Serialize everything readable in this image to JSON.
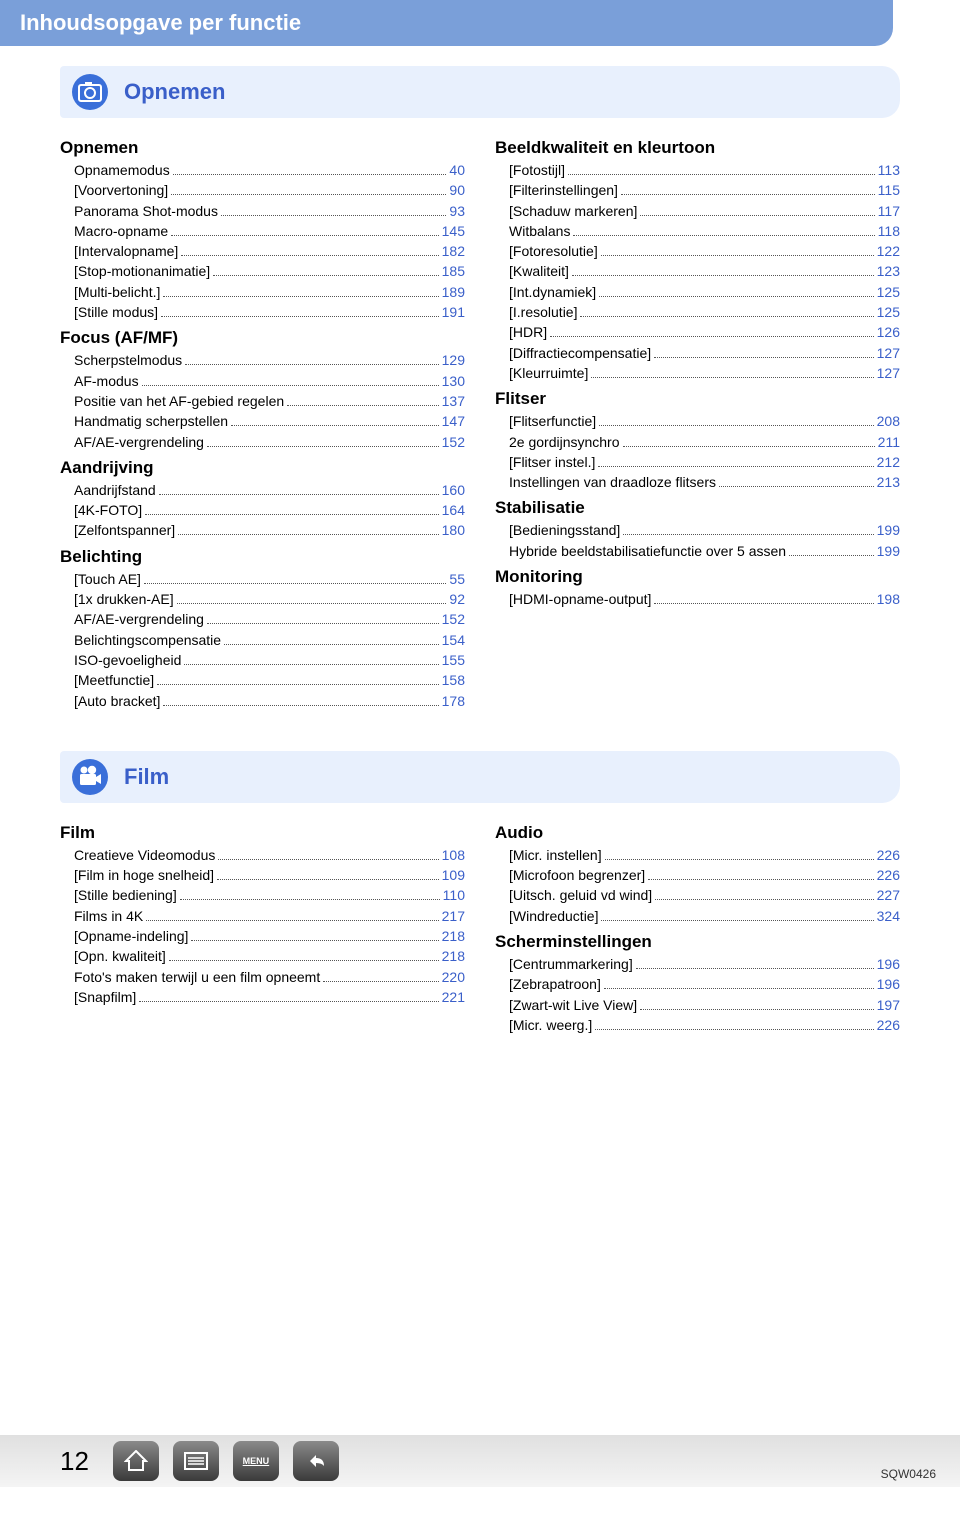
{
  "title": "Inhoudsopgave per functie",
  "page_number": "12",
  "footer_code": "SQW0426",
  "menu_label": "MENU",
  "colors": {
    "accent": "#3a5fc9",
    "header_bg": "#7a9fd9",
    "section_bg": "#e8f0fd"
  },
  "sections": [
    {
      "heading": "Opnemen",
      "icon": "camera-icon",
      "left": [
        {
          "sub": "Opnemen"
        },
        {
          "label": "Opnamemodus",
          "page": "40"
        },
        {
          "label": "[Voorvertoning]",
          "page": "90"
        },
        {
          "label": "Panorama Shot-modus",
          "page": "93"
        },
        {
          "label": "Macro-opname",
          "page": "145"
        },
        {
          "label": "[Intervalopname]",
          "page": "182"
        },
        {
          "label": "[Stop-motionanimatie]",
          "page": "185"
        },
        {
          "label": "[Multi-belicht.]",
          "page": "189"
        },
        {
          "label": "[Stille modus]",
          "page": "191"
        },
        {
          "sub": "Focus (AF/MF)"
        },
        {
          "label": "Scherpstelmodus",
          "page": "129"
        },
        {
          "label": "AF-modus",
          "page": "130"
        },
        {
          "label": "Positie van het AF-gebied regelen",
          "page": "137"
        },
        {
          "label": "Handmatig scherpstellen",
          "page": "147"
        },
        {
          "label": "AF/AE-vergrendeling",
          "page": "152"
        },
        {
          "sub": "Aandrijving"
        },
        {
          "label": "Aandrijfstand",
          "page": "160"
        },
        {
          "label": "[4K-FOTO]",
          "page": "164"
        },
        {
          "label": "[Zelfontspanner]",
          "page": "180"
        },
        {
          "sub": "Belichting"
        },
        {
          "label": "[Touch AE]",
          "page": "55"
        },
        {
          "label": "[1x drukken-AE]",
          "page": "92"
        },
        {
          "label": "AF/AE-vergrendeling",
          "page": "152"
        },
        {
          "label": "Belichtingscompensatie",
          "page": "154"
        },
        {
          "label": "ISO-gevoeligheid",
          "page": "155"
        },
        {
          "label": "[Meetfunctie]",
          "page": "158"
        },
        {
          "label": "[Auto bracket]",
          "page": "178"
        }
      ],
      "right": [
        {
          "sub": "Beeldkwaliteit en kleurtoon"
        },
        {
          "label": "[Fotostijl]",
          "page": "113"
        },
        {
          "label": "[Filterinstellingen]",
          "page": "115"
        },
        {
          "label": "[Schaduw markeren]",
          "page": "117"
        },
        {
          "label": "Witbalans",
          "page": "118"
        },
        {
          "label": "[Fotoresolutie]",
          "page": "122"
        },
        {
          "label": "[Kwaliteit]",
          "page": "123"
        },
        {
          "label": "[Int.dynamiek]",
          "page": "125"
        },
        {
          "label": "[I.resolutie]",
          "page": "125"
        },
        {
          "label": "[HDR]",
          "page": "126"
        },
        {
          "label": "[Diffractiecompensatie]",
          "page": "127"
        },
        {
          "label": "[Kleurruimte]",
          "page": "127"
        },
        {
          "sub": "Flitser"
        },
        {
          "label": "[Flitserfunctie]",
          "page": "208"
        },
        {
          "label": "2e gordijnsynchro",
          "page": "211"
        },
        {
          "label": "[Flitser instel.]",
          "page": "212"
        },
        {
          "label": "Instellingen van draadloze flitsers",
          "page": "213"
        },
        {
          "sub": "Stabilisatie"
        },
        {
          "label": "[Bedieningsstand]",
          "page": "199"
        },
        {
          "label": "Hybride beeldstabilisatiefunctie over 5 assen",
          "page": "199"
        },
        {
          "sub": "Monitoring"
        },
        {
          "label": "[HDMI-opname-output]",
          "page": "198"
        }
      ]
    },
    {
      "heading": "Film",
      "icon": "video-icon",
      "left": [
        {
          "sub": "Film"
        },
        {
          "label": "Creatieve Videomodus",
          "page": "108"
        },
        {
          "label": "[Film in hoge snelheid]",
          "page": "109"
        },
        {
          "label": "[Stille bediening]",
          "page": "110"
        },
        {
          "label": "Films in 4K",
          "page": "217"
        },
        {
          "label": "[Opname-indeling]",
          "page": "218"
        },
        {
          "label": "[Opn. kwaliteit]",
          "page": "218"
        },
        {
          "label": "Foto's maken terwijl u een film opneemt",
          "page": "220"
        },
        {
          "label": "[Snapfilm]",
          "page": "221"
        }
      ],
      "right": [
        {
          "sub": "Audio"
        },
        {
          "label": "[Micr. instellen]",
          "page": "226"
        },
        {
          "label": "[Microfoon begrenzer]",
          "page": "226"
        },
        {
          "label": "[Uitsch. geluid vd wind]",
          "page": "227"
        },
        {
          "label": "[Windreductie]",
          "page": "324"
        },
        {
          "sub": "Scherminstellingen"
        },
        {
          "label": "[Centrummarkering]",
          "page": "196"
        },
        {
          "label": "[Zebrapatroon]",
          "page": "196"
        },
        {
          "label": "[Zwart-wit Live View]",
          "page": "197"
        },
        {
          "label": "[Micr. weerg.]",
          "page": "226"
        }
      ]
    }
  ]
}
